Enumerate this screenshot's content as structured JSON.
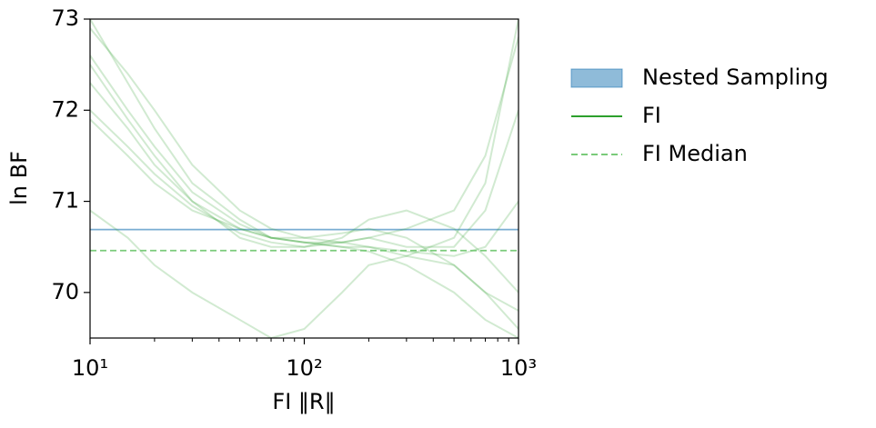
{
  "chart_data": {
    "type": "line",
    "xlabel": "FI ‖R‖",
    "ylabel": "ln BF",
    "xscale": "log",
    "x": [
      10,
      15,
      20,
      30,
      50,
      70,
      100,
      150,
      200,
      300,
      500,
      700,
      1000
    ],
    "xlim": [
      10,
      1000
    ],
    "xticks": [
      {
        "value": 10,
        "label": "10¹"
      },
      {
        "value": 100,
        "label": "10²"
      },
      {
        "value": 1000,
        "label": "10³"
      }
    ],
    "xminorticks": [
      20,
      30,
      40,
      50,
      60,
      70,
      80,
      90,
      200,
      300,
      400,
      500,
      600,
      700,
      800,
      900
    ],
    "ylim": [
      69.5,
      73
    ],
    "yticks": [
      70,
      71,
      72,
      73
    ],
    "curve_alpha": 0.22,
    "series": [
      {
        "name": "Nested Sampling",
        "color": "#1f77b4",
        "style": "band",
        "value": 70.69
      },
      {
        "name": "FI",
        "color": "#2ca02c",
        "style": "solid",
        "curves": [
          [
            73.0,
            72.3,
            71.8,
            71.2,
            70.8,
            70.6,
            70.55,
            70.5,
            70.5,
            70.45,
            70.4,
            70.5,
            71.0
          ],
          [
            72.6,
            72.0,
            71.6,
            71.1,
            70.75,
            70.6,
            70.55,
            70.55,
            70.6,
            70.7,
            70.9,
            71.5,
            72.8
          ],
          [
            72.3,
            71.8,
            71.4,
            71.0,
            70.7,
            70.6,
            70.6,
            70.65,
            70.7,
            70.6,
            70.3,
            70.0,
            69.6
          ],
          [
            72.9,
            72.4,
            72.0,
            71.4,
            70.9,
            70.7,
            70.6,
            70.55,
            70.5,
            70.4,
            70.6,
            71.2,
            73.0
          ],
          [
            71.9,
            71.5,
            71.2,
            70.9,
            70.7,
            70.6,
            70.55,
            70.5,
            70.45,
            70.3,
            70.0,
            69.7,
            69.5
          ],
          [
            72.5,
            71.9,
            71.5,
            71.0,
            70.6,
            70.5,
            70.5,
            70.6,
            70.8,
            70.9,
            70.7,
            70.4,
            70.0
          ],
          [
            72.0,
            71.6,
            71.3,
            70.95,
            70.65,
            70.55,
            70.5,
            70.55,
            70.6,
            70.5,
            70.5,
            70.9,
            72.0
          ],
          [
            70.9,
            70.6,
            70.3,
            70.0,
            69.7,
            69.5,
            69.6,
            70.0,
            70.3,
            70.4,
            70.3,
            70.0,
            69.8
          ]
        ]
      },
      {
        "name": "FI Median",
        "color": "#7acb7a",
        "style": "dashed",
        "value": 70.46
      }
    ]
  }
}
